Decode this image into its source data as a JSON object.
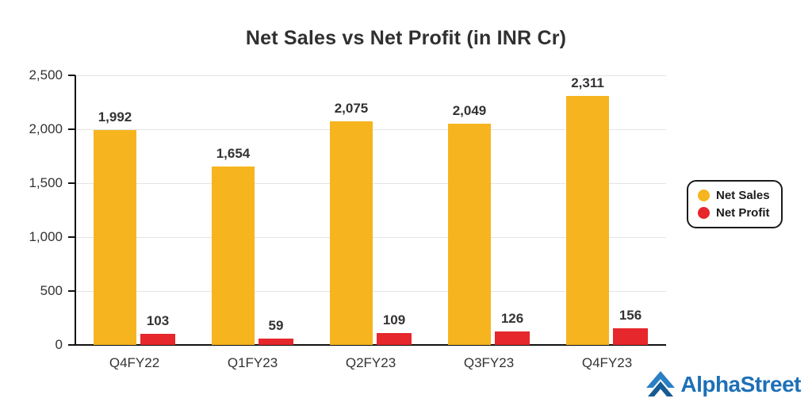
{
  "chart_data": {
    "type": "bar",
    "title": "Net Sales vs Net Profit (in INR Cr)",
    "categories": [
      "Q4FY22",
      "Q1FY23",
      "Q2FY23",
      "Q3FY23",
      "Q4FY23"
    ],
    "series": [
      {
        "name": "Net Sales",
        "color": "#F6B41F",
        "values": [
          1992,
          1654,
          2075,
          2049,
          2311
        ],
        "labels": [
          "1,992",
          "1,654",
          "2,075",
          "2,049",
          "2,311"
        ]
      },
      {
        "name": "Net Profit",
        "color": "#E6272C",
        "values": [
          103,
          59,
          109,
          126,
          156
        ],
        "labels": [
          "103",
          "59",
          "109",
          "126",
          "156"
        ]
      }
    ],
    "xlabel": "",
    "ylabel": "",
    "ylim": [
      0,
      2500
    ],
    "yticks": [
      0,
      500,
      1000,
      1500,
      2000,
      2500
    ],
    "ytick_labels": [
      "0",
      "500",
      "1,000",
      "1,500",
      "2,000",
      "2,500"
    ],
    "grid": true,
    "legend_position": "right"
  },
  "branding": {
    "logo_text": "AlphaStreet",
    "logo_color": "#1d70b7"
  }
}
